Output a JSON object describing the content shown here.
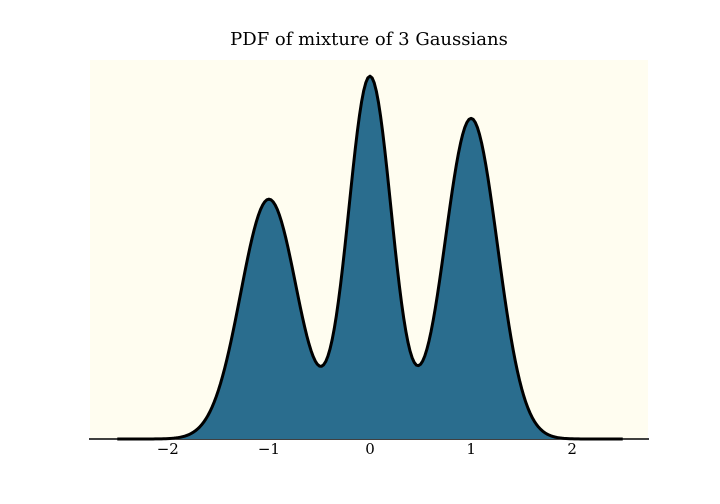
{
  "figure": {
    "background": "#ffffff",
    "axes_background": "#fffdf0"
  },
  "chart_data": {
    "type": "area",
    "title": "PDF of mixture of 3 Gaussians",
    "xlabel": "",
    "ylabel": "",
    "x_ticks": [
      -2,
      -1,
      0,
      1,
      2
    ],
    "x_tick_labels": [
      "−2",
      "−1",
      "0",
      "1",
      "2"
    ],
    "xlim": [
      -2.77,
      2.75
    ],
    "ylim": [
      0,
      0.662
    ],
    "grid": false,
    "legend": false,
    "y_axis_visible": false,
    "visible_spines": [
      "bottom"
    ],
    "curve": {
      "x_range": [
        -2.5,
        2.5
      ],
      "samples": 240,
      "mixture_components": [
        {
          "weight": 0.294,
          "mean": -1.0,
          "std": 0.28
        },
        {
          "weight": 0.341,
          "mean": 0.0,
          "std": 0.215
        },
        {
          "weight": 0.365,
          "mean": 1.0,
          "std": 0.26
        }
      ],
      "peaks": [
        {
          "x": -1.0,
          "density": 0.419
        },
        {
          "x": 0.0,
          "density": 0.634
        },
        {
          "x": 1.0,
          "density": 0.56
        }
      ],
      "valleys": [
        {
          "x": -0.52,
          "density": 0.13
        },
        {
          "x": 0.45,
          "density": 0.131
        }
      ]
    },
    "style": {
      "line_color": "#000000",
      "line_width": 3,
      "fill_color": "#2a6d8e",
      "axis_line_color": "#000000",
      "axis_line_width": 1.5
    }
  }
}
